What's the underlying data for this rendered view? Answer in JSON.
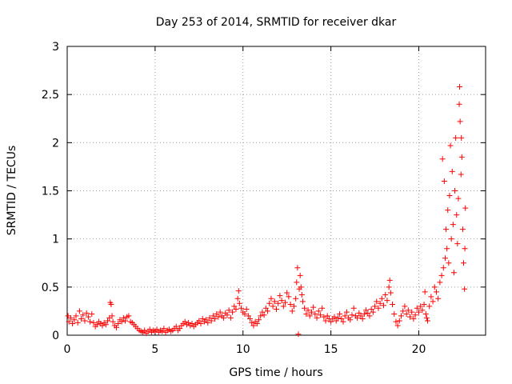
{
  "chart_data": {
    "type": "scatter",
    "title": "Day 253 of 2014, SRMTID for receiver dkar",
    "xlabel": "GPS time / hours",
    "ylabel": "SRMTID / TECUs",
    "xlim": [
      0,
      23.8
    ],
    "ylim": [
      0,
      3
    ],
    "xticks": [
      0,
      5,
      10,
      15,
      20
    ],
    "xtick_labels": [
      "0",
      "5",
      "10",
      "15",
      "20"
    ],
    "yticks": [
      0,
      0.5,
      1,
      1.5,
      2,
      2.5,
      3
    ],
    "ytick_labels": [
      "0",
      "0.5",
      "1",
      "1.5",
      "2",
      "2.5",
      "3"
    ],
    "grid": true,
    "marker": "+",
    "series": [
      {
        "name": "SRMTID",
        "color": "#ff0000",
        "points": [
          [
            0.05,
            0.2
          ],
          [
            0.1,
            0.14
          ],
          [
            0.2,
            0.18
          ],
          [
            0.3,
            0.12
          ],
          [
            0.4,
            0.16
          ],
          [
            0.5,
            0.2
          ],
          [
            0.6,
            0.13
          ],
          [
            0.7,
            0.25
          ],
          [
            0.8,
            0.17
          ],
          [
            0.9,
            0.21
          ],
          [
            1.0,
            0.15
          ],
          [
            1.1,
            0.23
          ],
          [
            1.2,
            0.19
          ],
          [
            1.3,
            0.14
          ],
          [
            1.4,
            0.22
          ],
          [
            1.5,
            0.13
          ],
          [
            1.6,
            0.09
          ],
          [
            1.7,
            0.11
          ],
          [
            1.8,
            0.14
          ],
          [
            1.9,
            0.12
          ],
          [
            2.0,
            0.1
          ],
          [
            2.1,
            0.13
          ],
          [
            2.2,
            0.11
          ],
          [
            2.3,
            0.15
          ],
          [
            2.4,
            0.18
          ],
          [
            2.45,
            0.34
          ],
          [
            2.5,
            0.32
          ],
          [
            2.55,
            0.2
          ],
          [
            2.6,
            0.14
          ],
          [
            2.7,
            0.1
          ],
          [
            2.8,
            0.08
          ],
          [
            2.9,
            0.12
          ],
          [
            3.0,
            0.16
          ],
          [
            3.1,
            0.14
          ],
          [
            3.2,
            0.18
          ],
          [
            3.3,
            0.15
          ],
          [
            3.4,
            0.19
          ],
          [
            3.5,
            0.2
          ],
          [
            3.6,
            0.14
          ],
          [
            3.7,
            0.13
          ],
          [
            3.8,
            0.11
          ],
          [
            3.9,
            0.09
          ],
          [
            4.0,
            0.07
          ],
          [
            4.1,
            0.05
          ],
          [
            4.2,
            0.04
          ],
          [
            4.3,
            0.03
          ],
          [
            4.4,
            0.05
          ],
          [
            4.5,
            0.02
          ],
          [
            4.6,
            0.04
          ],
          [
            4.7,
            0.06
          ],
          [
            4.8,
            0.03
          ],
          [
            4.9,
            0.05
          ],
          [
            5.0,
            0.04
          ],
          [
            5.1,
            0.06
          ],
          [
            5.2,
            0.03
          ],
          [
            5.3,
            0.05
          ],
          [
            5.4,
            0.04
          ],
          [
            5.5,
            0.07
          ],
          [
            5.6,
            0.03
          ],
          [
            5.7,
            0.05
          ],
          [
            5.8,
            0.06
          ],
          [
            5.9,
            0.04
          ],
          [
            6.0,
            0.05
          ],
          [
            6.1,
            0.07
          ],
          [
            6.2,
            0.09
          ],
          [
            6.3,
            0.05
          ],
          [
            6.4,
            0.07
          ],
          [
            6.5,
            0.1
          ],
          [
            6.6,
            0.12
          ],
          [
            6.7,
            0.14
          ],
          [
            6.8,
            0.11
          ],
          [
            6.9,
            0.13
          ],
          [
            7.0,
            0.1
          ],
          [
            7.1,
            0.12
          ],
          [
            7.2,
            0.09
          ],
          [
            7.3,
            0.11
          ],
          [
            7.4,
            0.13
          ],
          [
            7.5,
            0.15
          ],
          [
            7.6,
            0.12
          ],
          [
            7.7,
            0.17
          ],
          [
            7.8,
            0.14
          ],
          [
            7.9,
            0.16
          ],
          [
            8.0,
            0.13
          ],
          [
            8.1,
            0.18
          ],
          [
            8.2,
            0.15
          ],
          [
            8.3,
            0.2
          ],
          [
            8.4,
            0.17
          ],
          [
            8.5,
            0.22
          ],
          [
            8.6,
            0.19
          ],
          [
            8.7,
            0.24
          ],
          [
            8.8,
            0.2
          ],
          [
            8.9,
            0.18
          ],
          [
            9.0,
            0.23
          ],
          [
            9.1,
            0.21
          ],
          [
            9.2,
            0.26
          ],
          [
            9.3,
            0.18
          ],
          [
            9.4,
            0.24
          ],
          [
            9.5,
            0.3
          ],
          [
            9.6,
            0.27
          ],
          [
            9.7,
            0.38
          ],
          [
            9.75,
            0.46
          ],
          [
            9.8,
            0.33
          ],
          [
            9.9,
            0.28
          ],
          [
            10.0,
            0.24
          ],
          [
            10.1,
            0.22
          ],
          [
            10.2,
            0.27
          ],
          [
            10.3,
            0.2
          ],
          [
            10.4,
            0.17
          ],
          [
            10.5,
            0.13
          ],
          [
            10.6,
            0.1
          ],
          [
            10.7,
            0.14
          ],
          [
            10.8,
            0.12
          ],
          [
            10.9,
            0.16
          ],
          [
            11.0,
            0.2
          ],
          [
            11.1,
            0.24
          ],
          [
            11.2,
            0.21
          ],
          [
            11.3,
            0.28
          ],
          [
            11.4,
            0.25
          ],
          [
            11.5,
            0.33
          ],
          [
            11.6,
            0.38
          ],
          [
            11.7,
            0.3
          ],
          [
            11.8,
            0.35
          ],
          [
            11.9,
            0.27
          ],
          [
            12.0,
            0.33
          ],
          [
            12.1,
            0.41
          ],
          [
            12.2,
            0.36
          ],
          [
            12.3,
            0.3
          ],
          [
            12.4,
            0.34
          ],
          [
            12.5,
            0.44
          ],
          [
            12.6,
            0.4
          ],
          [
            12.7,
            0.32
          ],
          [
            12.8,
            0.25
          ],
          [
            12.9,
            0.3
          ],
          [
            13.0,
            0.38
          ],
          [
            13.05,
            0.55
          ],
          [
            13.1,
            0.7
          ],
          [
            13.15,
            0.01
          ],
          [
            13.2,
            0.48
          ],
          [
            13.25,
            0.62
          ],
          [
            13.3,
            0.5
          ],
          [
            13.35,
            0.42
          ],
          [
            13.4,
            0.35
          ],
          [
            13.5,
            0.28
          ],
          [
            13.6,
            0.22
          ],
          [
            13.7,
            0.26
          ],
          [
            13.8,
            0.2
          ],
          [
            13.9,
            0.24
          ],
          [
            14.0,
            0.29
          ],
          [
            14.1,
            0.22
          ],
          [
            14.2,
            0.18
          ],
          [
            14.3,
            0.25
          ],
          [
            14.4,
            0.21
          ],
          [
            14.5,
            0.28
          ],
          [
            14.6,
            0.19
          ],
          [
            14.7,
            0.15
          ],
          [
            14.8,
            0.2
          ],
          [
            14.9,
            0.17
          ],
          [
            15.0,
            0.14
          ],
          [
            15.1,
            0.17
          ],
          [
            15.2,
            0.19
          ],
          [
            15.3,
            0.15
          ],
          [
            15.4,
            0.18
          ],
          [
            15.5,
            0.22
          ],
          [
            15.6,
            0.17
          ],
          [
            15.7,
            0.14
          ],
          [
            15.8,
            0.2
          ],
          [
            15.9,
            0.24
          ],
          [
            16.0,
            0.18
          ],
          [
            16.1,
            0.16
          ],
          [
            16.2,
            0.21
          ],
          [
            16.3,
            0.28
          ],
          [
            16.4,
            0.2
          ],
          [
            16.5,
            0.18
          ],
          [
            16.6,
            0.23
          ],
          [
            16.7,
            0.2
          ],
          [
            16.8,
            0.17
          ],
          [
            16.9,
            0.22
          ],
          [
            17.0,
            0.26
          ],
          [
            17.1,
            0.23
          ],
          [
            17.2,
            0.2
          ],
          [
            17.3,
            0.27
          ],
          [
            17.4,
            0.24
          ],
          [
            17.5,
            0.3
          ],
          [
            17.6,
            0.35
          ],
          [
            17.7,
            0.28
          ],
          [
            17.8,
            0.33
          ],
          [
            17.9,
            0.38
          ],
          [
            18.0,
            0.31
          ],
          [
            18.1,
            0.42
          ],
          [
            18.2,
            0.36
          ],
          [
            18.3,
            0.5
          ],
          [
            18.35,
            0.57
          ],
          [
            18.4,
            0.44
          ],
          [
            18.5,
            0.32
          ],
          [
            18.6,
            0.22
          ],
          [
            18.7,
            0.14
          ],
          [
            18.8,
            0.1
          ],
          [
            18.9,
            0.15
          ],
          [
            19.0,
            0.2
          ],
          [
            19.1,
            0.25
          ],
          [
            19.2,
            0.3
          ],
          [
            19.3,
            0.22
          ],
          [
            19.4,
            0.26
          ],
          [
            19.5,
            0.19
          ],
          [
            19.6,
            0.24
          ],
          [
            19.7,
            0.17
          ],
          [
            19.8,
            0.21
          ],
          [
            19.9,
            0.28
          ],
          [
            20.0,
            0.24
          ],
          [
            20.1,
            0.3
          ],
          [
            20.2,
            0.26
          ],
          [
            20.3,
            0.32
          ],
          [
            20.35,
            0.45
          ],
          [
            20.4,
            0.22
          ],
          [
            20.45,
            0.18
          ],
          [
            20.5,
            0.15
          ],
          [
            20.6,
            0.3
          ],
          [
            20.7,
            0.4
          ],
          [
            20.8,
            0.35
          ],
          [
            20.9,
            0.5
          ],
          [
            21.0,
            0.45
          ],
          [
            21.1,
            0.38
          ],
          [
            21.2,
            0.55
          ],
          [
            21.3,
            0.62
          ],
          [
            21.35,
            1.83
          ],
          [
            21.4,
            0.7
          ],
          [
            21.45,
            1.6
          ],
          [
            21.5,
            0.8
          ],
          [
            21.55,
            1.1
          ],
          [
            21.6,
            0.9
          ],
          [
            21.65,
            1.3
          ],
          [
            21.7,
            0.75
          ],
          [
            21.75,
            1.45
          ],
          [
            21.8,
            1.97
          ],
          [
            21.85,
            1.0
          ],
          [
            21.9,
            1.7
          ],
          [
            21.95,
            1.15
          ],
          [
            22.0,
            0.65
          ],
          [
            22.05,
            1.5
          ],
          [
            22.1,
            2.05
          ],
          [
            22.15,
            1.25
          ],
          [
            22.2,
            0.95
          ],
          [
            22.25,
            1.42
          ],
          [
            22.3,
            2.4
          ],
          [
            22.32,
            2.58
          ],
          [
            22.35,
            2.22
          ],
          [
            22.4,
            1.67
          ],
          [
            22.42,
            2.05
          ],
          [
            22.45,
            1.85
          ],
          [
            22.5,
            1.1
          ],
          [
            22.55,
            0.75
          ],
          [
            22.6,
            0.48
          ],
          [
            22.62,
            0.9
          ],
          [
            22.65,
            1.32
          ]
        ]
      }
    ]
  }
}
